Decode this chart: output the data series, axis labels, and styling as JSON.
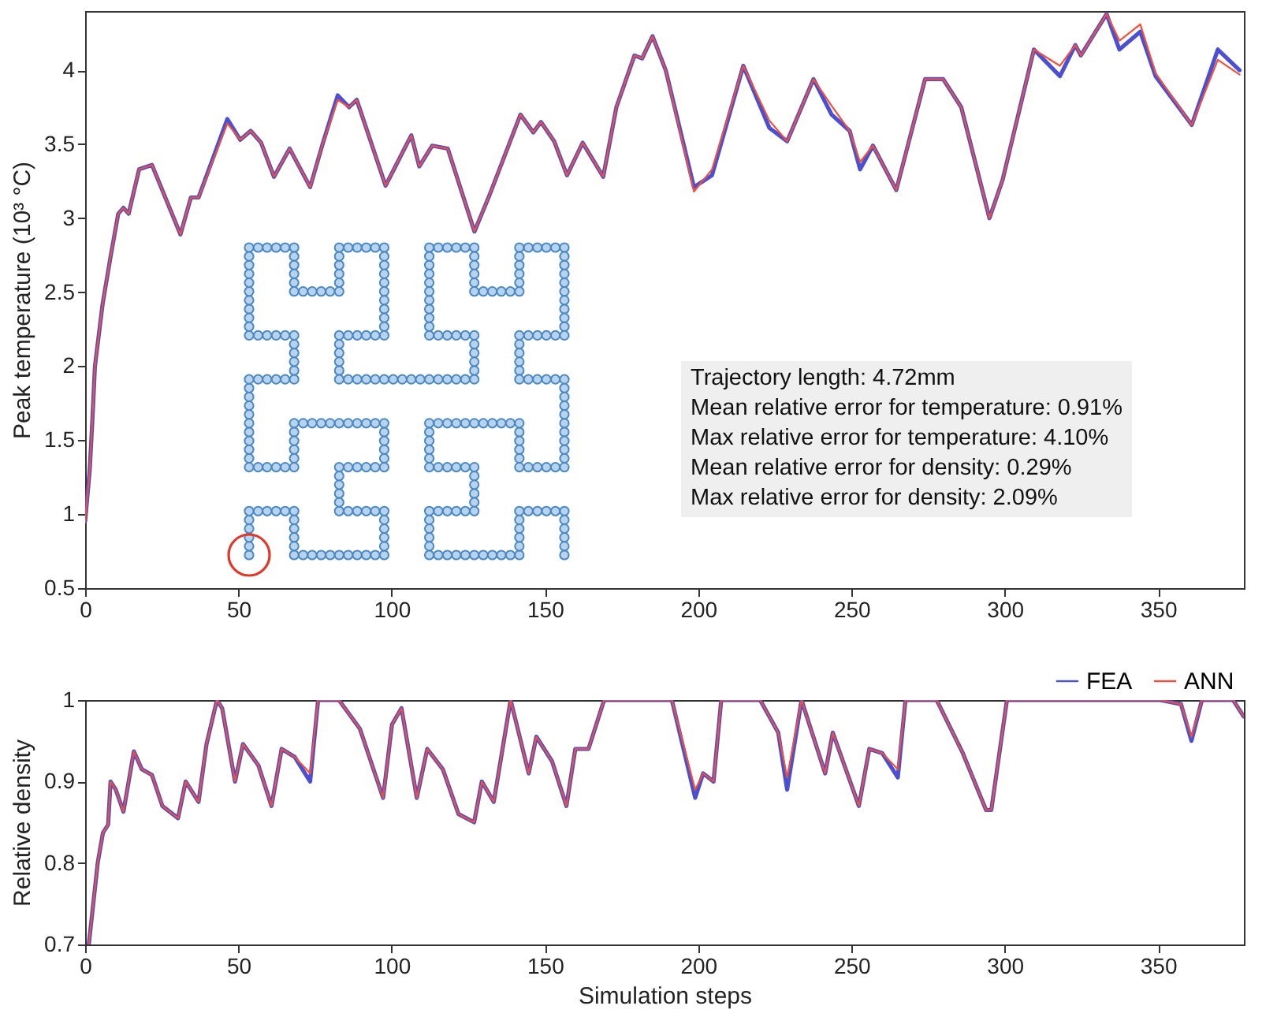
{
  "chart_data": [
    {
      "type": "line",
      "ylabel": "Peak temperature (10³ °C)",
      "xlim": [
        0,
        378
      ],
      "xticks": [
        0,
        50,
        100,
        150,
        200,
        250,
        300,
        350
      ],
      "ylim": [
        0.5,
        4.4
      ],
      "yticks": [
        0.5,
        1,
        1.5,
        2,
        2.5,
        3,
        3.5,
        4
      ],
      "grid": false,
      "legend": false,
      "annotations": [
        "Trajectory length: 4.72mm",
        "Mean relative error for temperature: 0.91%",
        "Max relative error for temperature: 4.10%",
        "Mean relative error for density: 0.29%",
        "Max relative error for density: 2.09%"
      ],
      "x": [
        0,
        1.5,
        2.4,
        3.2,
        5.7,
        8.3,
        10.8,
        12.5,
        14.2,
        17.6,
        21.8,
        31.1,
        34.5,
        37,
        46.4,
        50.6,
        54,
        57.4,
        61.6,
        66.7,
        73.4,
        77.6,
        82.4,
        86.1,
        88.6,
        98,
        106.4,
        109,
        113.2,
        118.3,
        127,
        131.8,
        142,
        146.2,
        148.7,
        153,
        157.2,
        162.3,
        169,
        173.3,
        179.2,
        181.7,
        185.1,
        189.4,
        198.6,
        204.5,
        214.7,
        223.2,
        229,
        237.6,
        243.5,
        249.4,
        252.8,
        257,
        264.6,
        274,
        279.9,
        285.8,
        295,
        299.3,
        309.5,
        318,
        323,
        324.8,
        333.2,
        337.4,
        344.2,
        349.2,
        361,
        369.5,
        376.6
      ],
      "series": [
        {
          "color": "#4b4fd0",
          "values": [
            0.95,
            1.3,
            1.65,
            2.0,
            2.42,
            2.74,
            3.03,
            3.07,
            3.03,
            3.33,
            3.36,
            2.89,
            3.14,
            3.14,
            3.67,
            3.53,
            3.59,
            3.51,
            3.28,
            3.47,
            3.21,
            3.51,
            3.83,
            3.75,
            3.8,
            3.22,
            3.56,
            3.35,
            3.49,
            3.47,
            2.91,
            3.15,
            3.7,
            3.58,
            3.65,
            3.52,
            3.29,
            3.51,
            3.28,
            3.75,
            4.1,
            4.08,
            4.23,
            4.0,
            3.21,
            3.29,
            4.03,
            3.61,
            3.52,
            3.94,
            3.7,
            3.59,
            3.33,
            3.49,
            3.19,
            3.94,
            3.94,
            3.75,
            3.0,
            3.26,
            4.14,
            3.96,
            4.17,
            4.1,
            4.38,
            4.14,
            4.26,
            3.96,
            3.63,
            4.14,
            4.0
          ]
        },
        {
          "color": "#f0503c",
          "values": [
            0.95,
            1.3,
            1.65,
            2.0,
            2.42,
            2.74,
            3.03,
            3.07,
            3.03,
            3.33,
            3.36,
            2.89,
            3.14,
            3.14,
            3.64,
            3.53,
            3.59,
            3.51,
            3.28,
            3.47,
            3.21,
            3.51,
            3.8,
            3.75,
            3.8,
            3.22,
            3.56,
            3.35,
            3.49,
            3.47,
            2.91,
            3.15,
            3.7,
            3.58,
            3.65,
            3.52,
            3.29,
            3.51,
            3.28,
            3.75,
            4.1,
            4.08,
            4.23,
            4.0,
            3.18,
            3.33,
            4.03,
            3.66,
            3.52,
            3.94,
            3.76,
            3.59,
            3.38,
            3.49,
            3.19,
            3.94,
            3.94,
            3.75,
            3.0,
            3.26,
            4.14,
            4.03,
            4.17,
            4.1,
            4.38,
            4.2,
            4.31,
            3.98,
            3.63,
            4.07,
            3.97
          ]
        }
      ]
    },
    {
      "type": "line",
      "xlabel": "Simulation steps",
      "ylabel": "Relative density",
      "xlim": [
        0,
        378
      ],
      "xticks": [
        0,
        50,
        100,
        150,
        200,
        250,
        300,
        350
      ],
      "ylim": [
        0.7,
        1
      ],
      "yticks": [
        0.7,
        0.8,
        0.9,
        1
      ],
      "grid": false,
      "legend": "top right",
      "x": [
        1.2,
        4.1,
        5.8,
        7.5,
        8.3,
        10,
        12.5,
        15.9,
        18.5,
        21.8,
        25.2,
        30.3,
        32.8,
        37,
        39.6,
        43,
        44.7,
        48.9,
        51.5,
        56.5,
        60.8,
        64.1,
        68.4,
        73.4,
        76,
        82.8,
        89.6,
        97.2,
        100.1,
        103.2,
        108.2,
        111.6,
        116.7,
        121.8,
        126.9,
        129.4,
        133.3,
        138.8,
        144.7,
        147.2,
        152.3,
        157,
        159.9,
        164.2,
        169.3,
        191.4,
        199,
        201.6,
        205,
        207.5,
        220.2,
        226.1,
        229,
        233.7,
        241.4,
        243.9,
        252.4,
        255.8,
        260,
        265.1,
        267.6,
        277.8,
        286.3,
        293.9,
        295.6,
        300.7,
        350.7,
        357.5,
        360.9,
        364.3,
        374.5,
        377.9
      ],
      "series": [
        {
          "name": "FEA",
          "color": "#4b4fd0",
          "values": [
            0.7,
            0.8,
            0.837,
            0.847,
            0.9,
            0.89,
            0.863,
            0.937,
            0.915,
            0.908,
            0.87,
            0.855,
            0.9,
            0.875,
            0.946,
            1,
            0.99,
            0.9,
            0.946,
            0.92,
            0.87,
            0.94,
            0.93,
            0.9,
            1,
            1,
            0.965,
            0.88,
            0.97,
            0.99,
            0.88,
            0.94,
            0.915,
            0.86,
            0.85,
            0.9,
            0.875,
            1,
            0.91,
            0.955,
            0.925,
            0.87,
            0.94,
            0.94,
            1,
            1,
            0.88,
            0.91,
            0.9,
            1,
            1,
            0.96,
            0.89,
            1,
            0.91,
            0.96,
            0.87,
            0.94,
            0.935,
            0.905,
            1,
            1,
            0.935,
            0.865,
            0.865,
            1,
            1,
            0.995,
            0.95,
            1,
            1,
            0.98
          ]
        },
        {
          "name": "ANN",
          "color": "#f0503c",
          "values": [
            0.7,
            0.8,
            0.837,
            0.847,
            0.9,
            0.89,
            0.863,
            0.937,
            0.915,
            0.908,
            0.87,
            0.855,
            0.9,
            0.875,
            0.946,
            1,
            0.99,
            0.9,
            0.946,
            0.92,
            0.87,
            0.94,
            0.93,
            0.91,
            1,
            1,
            0.965,
            0.88,
            0.97,
            0.99,
            0.88,
            0.94,
            0.915,
            0.86,
            0.85,
            0.9,
            0.875,
            1,
            0.91,
            0.955,
            0.925,
            0.87,
            0.94,
            0.94,
            1,
            1,
            0.89,
            0.91,
            0.9,
            1,
            1,
            0.96,
            0.905,
            1,
            0.91,
            0.96,
            0.87,
            0.94,
            0.935,
            0.915,
            1,
            1,
            0.935,
            0.865,
            0.865,
            1,
            1,
            0.995,
            0.955,
            1,
            1,
            0.98
          ]
        }
      ]
    }
  ]
}
